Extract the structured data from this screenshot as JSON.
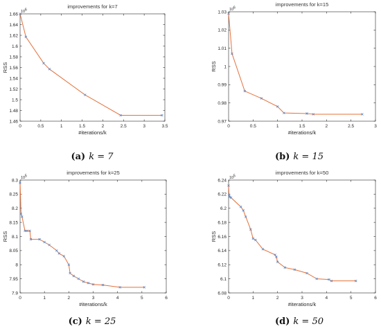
{
  "colors": {
    "line": "#e5703a",
    "marker": "#5b86c5",
    "axis": "#262626"
  },
  "chart_data": [
    {
      "type": "line",
      "title": "improvements for k=7",
      "xlabel": "#iterations/k",
      "ylabel": "RSS",
      "multiplier": "10",
      "multiplier_exp": "6",
      "caption_tag": "(a)",
      "caption_expr": "k = 7",
      "xlim": [
        0,
        3.5
      ],
      "ylim": [
        1.46,
        1.66
      ],
      "xticks": [
        0,
        0.5,
        1,
        1.5,
        2,
        2.5,
        3,
        3.5
      ],
      "xtick_labels": [
        "0",
        "0.5",
        "1",
        "1.5",
        "2",
        "2.5",
        "3",
        "3.5"
      ],
      "yticks": [
        1.46,
        1.48,
        1.5,
        1.52,
        1.54,
        1.56,
        1.58,
        1.6,
        1.62,
        1.64,
        1.66
      ],
      "ytick_labels": [
        "1.46",
        "1.48",
        "1.5",
        "1.52",
        "1.54",
        "1.56",
        "1.58",
        "1.6",
        "1.62",
        "1.64",
        "1.66"
      ],
      "series": [
        {
          "x": [
            0,
            0.14,
            0.57,
            0.71,
            1.57,
            2.43,
            3.43
          ],
          "y": [
            1.66,
            1.617,
            1.568,
            1.557,
            1.509,
            1.471,
            1.471
          ]
        }
      ]
    },
    {
      "type": "line",
      "title": "improvements for k=15",
      "xlabel": "#iterations/k",
      "ylabel": "RSS",
      "multiplier": "10",
      "multiplier_exp": "6",
      "caption_tag": "(b)",
      "caption_expr": "k = 15",
      "xlim": [
        0,
        3
      ],
      "ylim": [
        0.97,
        1.03
      ],
      "xticks": [
        0,
        0.5,
        1,
        1.5,
        2,
        2.5,
        3
      ],
      "xtick_labels": [
        "0",
        "0.5",
        "1",
        "1.5",
        "2",
        "2.5",
        "3"
      ],
      "yticks": [
        0.97,
        0.98,
        0.99,
        1,
        1.01,
        1.02,
        1.03
      ],
      "ytick_labels": [
        "0.97",
        "0.98",
        "0.99",
        "1",
        "1.01",
        "1.02",
        "1.03"
      ],
      "series": [
        {
          "x": [
            0,
            0.07,
            0.33,
            0.67,
            1.0,
            1.13,
            1.6,
            1.73,
            2.73
          ],
          "y": [
            1.029,
            1.007,
            0.9865,
            0.9825,
            0.978,
            0.9745,
            0.9742,
            0.9738,
            0.9738
          ]
        }
      ]
    },
    {
      "type": "line",
      "title": "improvements for k=25",
      "xlabel": "#iterations/k",
      "ylabel": "RSS",
      "multiplier": "10",
      "multiplier_exp": "5",
      "caption_tag": "(c)",
      "caption_expr": "k = 25",
      "xlim": [
        0,
        6
      ],
      "ylim": [
        7.9,
        8.3
      ],
      "xticks": [
        0,
        1,
        2,
        3,
        4,
        5,
        6
      ],
      "xtick_labels": [
        "0",
        "1",
        "2",
        "3",
        "4",
        "5",
        "6"
      ],
      "yticks": [
        7.9,
        7.95,
        8,
        8.05,
        8.1,
        8.15,
        8.2,
        8.25,
        8.3
      ],
      "ytick_labels": [
        "7.9",
        "7.95",
        "8",
        "8.05",
        "8.1",
        "8.15",
        "8.2",
        "8.25",
        "8.3"
      ],
      "series": [
        {
          "x": [
            0,
            0.04,
            0.08,
            0.2,
            0.28,
            0.4,
            0.44,
            0.8,
            1.0,
            1.2,
            1.5,
            1.6,
            1.8,
            2.0,
            2.05,
            2.2,
            2.4,
            2.6,
            2.8,
            3.0,
            3.4,
            4.1,
            5.1
          ],
          "y": [
            8.29,
            8.18,
            8.17,
            8.12,
            8.12,
            8.12,
            8.09,
            8.09,
            8.08,
            8.07,
            8.05,
            8.04,
            8.03,
            8.0,
            7.97,
            7.96,
            7.95,
            7.94,
            7.935,
            7.93,
            7.928,
            7.92,
            7.92
          ]
        }
      ]
    },
    {
      "type": "line",
      "title": "improvements for k=50",
      "xlabel": "#iterations/k",
      "ylabel": "RSS",
      "multiplier": "10",
      "multiplier_exp": "5",
      "caption_tag": "(d)",
      "caption_expr": "k = 50",
      "xlim": [
        0,
        6
      ],
      "ylim": [
        6.08,
        6.24
      ],
      "xticks": [
        0,
        1,
        2,
        3,
        4,
        5,
        6
      ],
      "xtick_labels": [
        "0",
        "1",
        "2",
        "3",
        "4",
        "5",
        "6"
      ],
      "yticks": [
        6.08,
        6.1,
        6.12,
        6.14,
        6.16,
        6.18,
        6.2,
        6.22,
        6.24
      ],
      "ytick_labels": [
        "6.08",
        "6.1",
        "6.12",
        "6.14",
        "6.16",
        "6.18",
        "6.2",
        "6.22",
        "6.24"
      ],
      "series": [
        {
          "x": [
            0,
            0.02,
            0.04,
            0.1,
            0.5,
            0.6,
            0.7,
            0.9,
            1.0,
            1.1,
            1.4,
            1.9,
            1.95,
            2.0,
            2.3,
            2.7,
            3.2,
            3.6,
            4.1,
            4.2,
            5.2
          ],
          "y": [
            6.232,
            6.219,
            6.216,
            6.215,
            6.202,
            6.197,
            6.188,
            6.17,
            6.157,
            6.155,
            6.142,
            6.134,
            6.131,
            6.124,
            6.116,
            6.113,
            6.108,
            6.1,
            6.099,
            6.097,
            6.097
          ]
        }
      ]
    }
  ]
}
